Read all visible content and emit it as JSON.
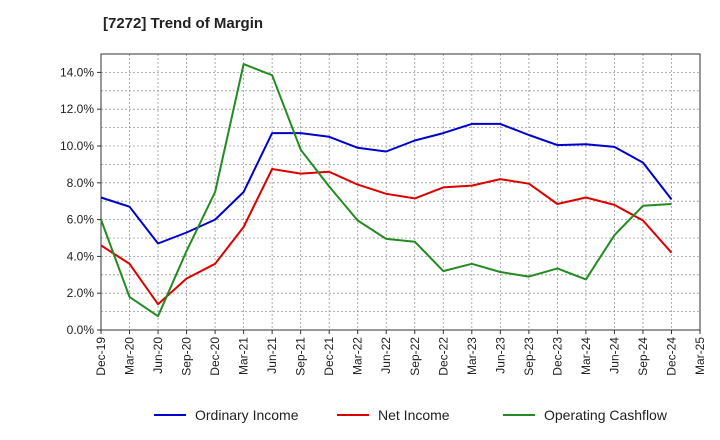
{
  "chart_data": {
    "type": "line",
    "title": "[7272]  Trend of Margin",
    "xlabel": "",
    "ylabel": "",
    "x": [
      "Dec-19",
      "Mar-20",
      "Jun-20",
      "Sep-20",
      "Dec-20",
      "Mar-21",
      "Jun-21",
      "Sep-21",
      "Dec-21",
      "Mar-22",
      "Jun-22",
      "Sep-22",
      "Dec-22",
      "Mar-23",
      "Jun-23",
      "Sep-23",
      "Dec-23",
      "Mar-24",
      "Jun-24",
      "Sep-24",
      "Dec-24",
      "Mar-25"
    ],
    "yticks": [
      "0.0%",
      "2.0%",
      "4.0%",
      "6.0%",
      "8.0%",
      "10.0%",
      "12.0%",
      "14.0%"
    ],
    "ylim": [
      0,
      15
    ],
    "grid": true,
    "legend_position": "bottom",
    "series": [
      {
        "name": "Ordinary Income",
        "color": "#0000cc",
        "values": [
          7.2,
          6.7,
          4.7,
          5.3,
          6.0,
          7.5,
          10.7,
          10.7,
          10.5,
          9.9,
          9.7,
          10.3,
          10.7,
          11.2,
          11.2,
          10.6,
          10.05,
          10.1,
          9.95,
          9.1,
          7.1,
          null
        ]
      },
      {
        "name": "Net Income",
        "color": "#dd0000",
        "values": [
          4.6,
          3.6,
          1.4,
          2.8,
          3.6,
          5.6,
          8.75,
          8.5,
          8.6,
          7.9,
          7.4,
          7.15,
          7.75,
          7.85,
          8.2,
          7.95,
          6.85,
          7.2,
          6.8,
          5.95,
          4.2,
          null
        ]
      },
      {
        "name": "Operating Cashflow",
        "color": "#228b22",
        "values": [
          6.0,
          1.8,
          0.75,
          4.3,
          7.5,
          14.45,
          13.85,
          9.8,
          7.8,
          5.95,
          4.95,
          4.8,
          3.2,
          3.6,
          3.15,
          2.9,
          3.35,
          2.75,
          5.15,
          6.75,
          6.85,
          null
        ]
      }
    ]
  }
}
